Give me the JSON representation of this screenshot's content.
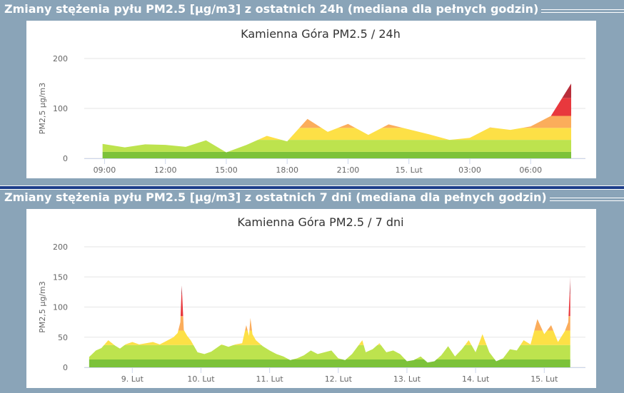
{
  "sections": [
    {
      "title": "Zmiany stężenia pyłu PM2.5 [µg/m3] z ostatnich 24h (mediana dla pełnych godzin)"
    },
    {
      "title": "Zmiany stężenia pyłu PM2.5 [µg/m3] z ostatnich 7 dni (mediana dla pełnych godzin)"
    }
  ],
  "band_colors": [
    "#7cc23a",
    "#bde34e",
    "#fde046",
    "#fbad5b",
    "#e8383d",
    "#b82e3a"
  ],
  "band_limits": [
    13,
    37,
    61,
    85,
    121
  ],
  "chart_data": [
    {
      "type": "area",
      "title": "Kamienna Góra PM2.5 / 24h",
      "ylabel": "PM2,5 µg/m3",
      "ylim": [
        0,
        200
      ],
      "yticks": [
        0,
        100,
        200
      ],
      "xlim": [
        8.0,
        32.7
      ],
      "xticks": [
        {
          "x": 9,
          "label": "09:00"
        },
        {
          "x": 12,
          "label": "12:00"
        },
        {
          "x": 15,
          "label": "15:00"
        },
        {
          "x": 18,
          "label": "18:00"
        },
        {
          "x": 21,
          "label": "21:00"
        },
        {
          "x": 24,
          "label": "15. Lut"
        },
        {
          "x": 27,
          "label": "03:00"
        },
        {
          "x": 30,
          "label": "06:00"
        }
      ],
      "x": [
        8.9,
        10,
        11,
        12,
        13,
        14,
        15,
        16,
        17,
        18,
        19,
        20,
        21,
        22,
        23,
        24,
        25,
        26,
        27,
        28,
        29,
        30,
        31,
        32
      ],
      "values": [
        29,
        22,
        28,
        27,
        23,
        36,
        12,
        27,
        45,
        34,
        79,
        53,
        69,
        47,
        68,
        58,
        48,
        37,
        41,
        62,
        57,
        64,
        85,
        150
      ]
    },
    {
      "type": "area",
      "title": "Kamienna Góra PM2.5 / 7 dni",
      "ylabel": "PM2,5 µg/m3",
      "ylim": [
        0,
        200
      ],
      "yticks": [
        0,
        50,
        100,
        150,
        200
      ],
      "xlim": [
        8.3,
        15.6
      ],
      "xticks": [
        {
          "x": 9,
          "label": "9. Lut"
        },
        {
          "x": 10,
          "label": "10. Lut"
        },
        {
          "x": 11,
          "label": "11. Lut"
        },
        {
          "x": 12,
          "label": "12. Lut"
        },
        {
          "x": 13,
          "label": "13. Lut"
        },
        {
          "x": 14,
          "label": "14. Lut"
        },
        {
          "x": 15,
          "label": "15. Lut"
        }
      ],
      "x": [
        8.37,
        8.47,
        8.55,
        8.65,
        8.75,
        8.82,
        8.9,
        9.0,
        9.1,
        9.2,
        9.3,
        9.4,
        9.5,
        9.6,
        9.66,
        9.7,
        9.72,
        9.75,
        9.8,
        9.85,
        9.95,
        10.05,
        10.15,
        10.3,
        10.4,
        10.5,
        10.6,
        10.66,
        10.7,
        10.72,
        10.75,
        10.8,
        10.9,
        11.0,
        11.1,
        11.2,
        11.3,
        11.4,
        11.5,
        11.6,
        11.7,
        11.8,
        11.9,
        12.0,
        12.1,
        12.2,
        12.35,
        12.4,
        12.5,
        12.6,
        12.7,
        12.8,
        12.9,
        13.0,
        13.1,
        13.2,
        13.3,
        13.4,
        13.5,
        13.6,
        13.7,
        13.8,
        13.9,
        14.0,
        14.1,
        14.2,
        14.3,
        14.4,
        14.5,
        14.6,
        14.7,
        14.8,
        14.9,
        15.0,
        15.1,
        15.2,
        15.3,
        15.35,
        15.38
      ],
      "values": [
        17,
        28,
        32,
        45,
        36,
        31,
        38,
        42,
        38,
        40,
        42,
        38,
        44,
        50,
        57,
        75,
        136,
        62,
        52,
        45,
        25,
        22,
        26,
        38,
        34,
        38,
        40,
        70,
        52,
        82,
        55,
        45,
        35,
        28,
        22,
        18,
        12,
        15,
        20,
        28,
        22,
        25,
        28,
        15,
        12,
        22,
        45,
        25,
        30,
        40,
        25,
        28,
        22,
        10,
        12,
        18,
        8,
        10,
        20,
        35,
        18,
        30,
        45,
        25,
        55,
        25,
        10,
        15,
        30,
        28,
        45,
        38,
        80,
        55,
        70,
        42,
        60,
        75,
        150
      ]
    }
  ]
}
